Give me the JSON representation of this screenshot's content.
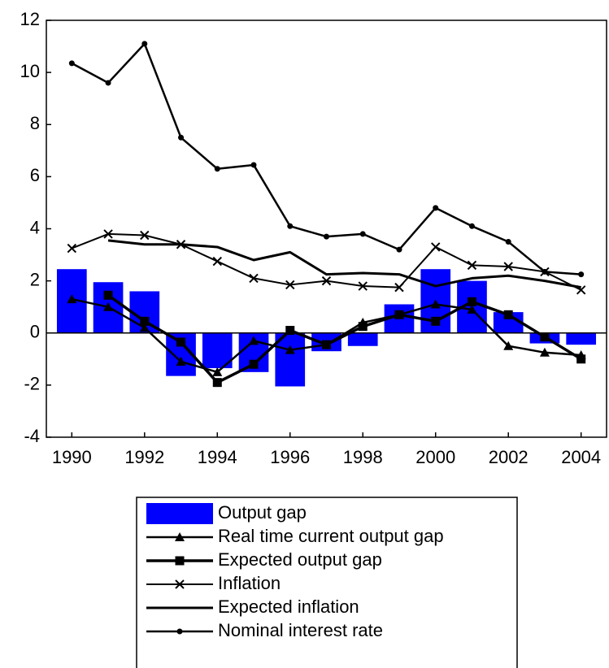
{
  "chart_data": {
    "type": "combo",
    "x": [
      1990,
      1991,
      1992,
      1993,
      1994,
      1995,
      1996,
      1997,
      1998,
      1999,
      2000,
      2001,
      2002,
      2003,
      2004
    ],
    "xlim": [
      1989.3,
      2004.7
    ],
    "xticks": [
      1990,
      1992,
      1994,
      1996,
      1998,
      2000,
      2002,
      2004
    ],
    "ylim": [
      -4,
      12
    ],
    "yticks": [
      -4,
      -2,
      0,
      2,
      4,
      6,
      8,
      10,
      12
    ],
    "series": [
      {
        "name": "Output gap",
        "type": "bar",
        "color": "#0000ff",
        "values": [
          2.45,
          1.95,
          1.6,
          -1.65,
          -1.35,
          -1.5,
          -2.05,
          -0.7,
          -0.5,
          1.1,
          2.45,
          2.0,
          0.8,
          -0.4,
          -0.45
        ]
      },
      {
        "name": "Real time current output gap",
        "type": "line",
        "color": "#000000",
        "marker": "triangle",
        "values": [
          1.3,
          1.0,
          0.2,
          -1.1,
          -1.5,
          -0.3,
          -0.65,
          -0.45,
          0.4,
          0.7,
          1.1,
          0.9,
          -0.5,
          -0.75,
          -0.85
        ]
      },
      {
        "name": "Expected output gap",
        "type": "line",
        "color": "#000000",
        "marker": "square",
        "values": [
          null,
          1.45,
          0.45,
          -0.35,
          -1.9,
          -1.2,
          0.1,
          -0.45,
          0.25,
          0.7,
          0.45,
          1.2,
          0.7,
          -0.15,
          -1.0
        ]
      },
      {
        "name": "Inflation",
        "type": "line",
        "color": "#000000",
        "marker": "cross",
        "values": [
          3.25,
          3.8,
          3.75,
          3.4,
          2.75,
          2.1,
          1.85,
          2.0,
          1.8,
          1.75,
          3.3,
          2.6,
          2.55,
          2.35,
          1.65
        ]
      },
      {
        "name": "Expected inflation",
        "type": "line",
        "color": "#000000",
        "marker": "none",
        "values": [
          null,
          3.55,
          3.4,
          3.4,
          3.3,
          2.8,
          3.1,
          2.25,
          2.3,
          2.25,
          1.8,
          2.1,
          2.2,
          2.0,
          1.75
        ]
      },
      {
        "name": "Nominal interest rate",
        "type": "line",
        "color": "#000000",
        "marker": "circle",
        "values": [
          10.35,
          9.6,
          11.1,
          7.5,
          6.3,
          6.45,
          4.1,
          3.7,
          3.8,
          3.2,
          4.8,
          4.1,
          3.5,
          2.35,
          2.25
        ]
      }
    ]
  }
}
